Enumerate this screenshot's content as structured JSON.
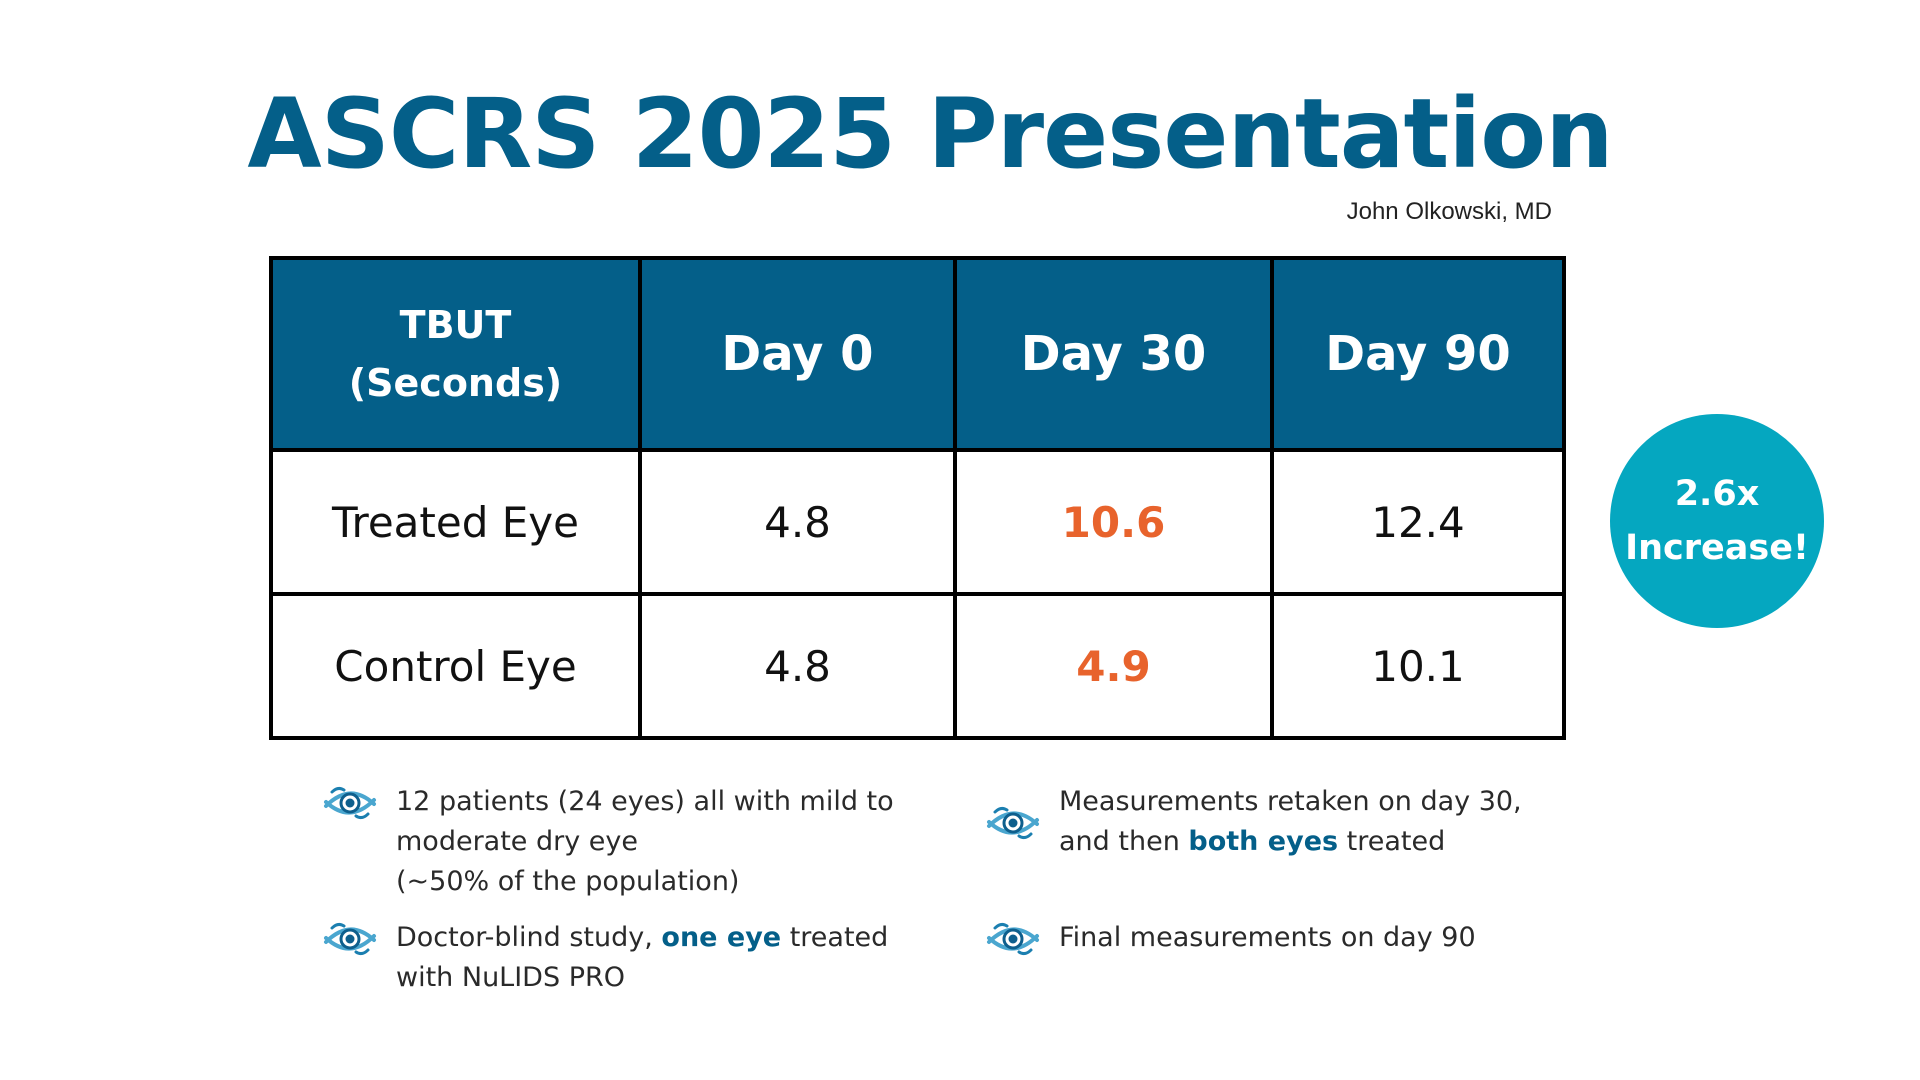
{
  "title": "ASCRS 2025 Presentation",
  "author": "John Olkowski, MD",
  "colors": {
    "brand": "#045f89",
    "highlight": "#e8632c",
    "badge": "#05a7c0"
  },
  "table": {
    "header": {
      "corner_line1": "TBUT",
      "corner_line2": "(Seconds)",
      "day0": "Day 0",
      "day30": "Day 30",
      "day90": "Day 90"
    },
    "rows": [
      {
        "label": "Treated Eye",
        "day0": "4.8",
        "day30": "10.6",
        "day90": "12.4"
      },
      {
        "label": "Control Eye",
        "day0": "4.8",
        "day30": "4.9",
        "day90": "10.1"
      }
    ]
  },
  "badge": {
    "line1": "2.6x",
    "line2": "Increase!"
  },
  "bullets": {
    "b1": {
      "line1": "12 patients (24 eyes) all with mild to",
      "line2": "moderate dry eye",
      "line3": "(~50% of the population)"
    },
    "b2": {
      "pre": "Doctor-blind study, ",
      "em": "one eye",
      "post": " treated",
      "line2": "with NuLIDS PRO"
    },
    "b3": {
      "line1": "Measurements retaken on day 30,",
      "pre": "and then ",
      "em": "both eyes",
      "post": " treated"
    },
    "b4": {
      "line1": "Final measurements on day 90"
    }
  },
  "icon_name": "eye-logo-icon"
}
